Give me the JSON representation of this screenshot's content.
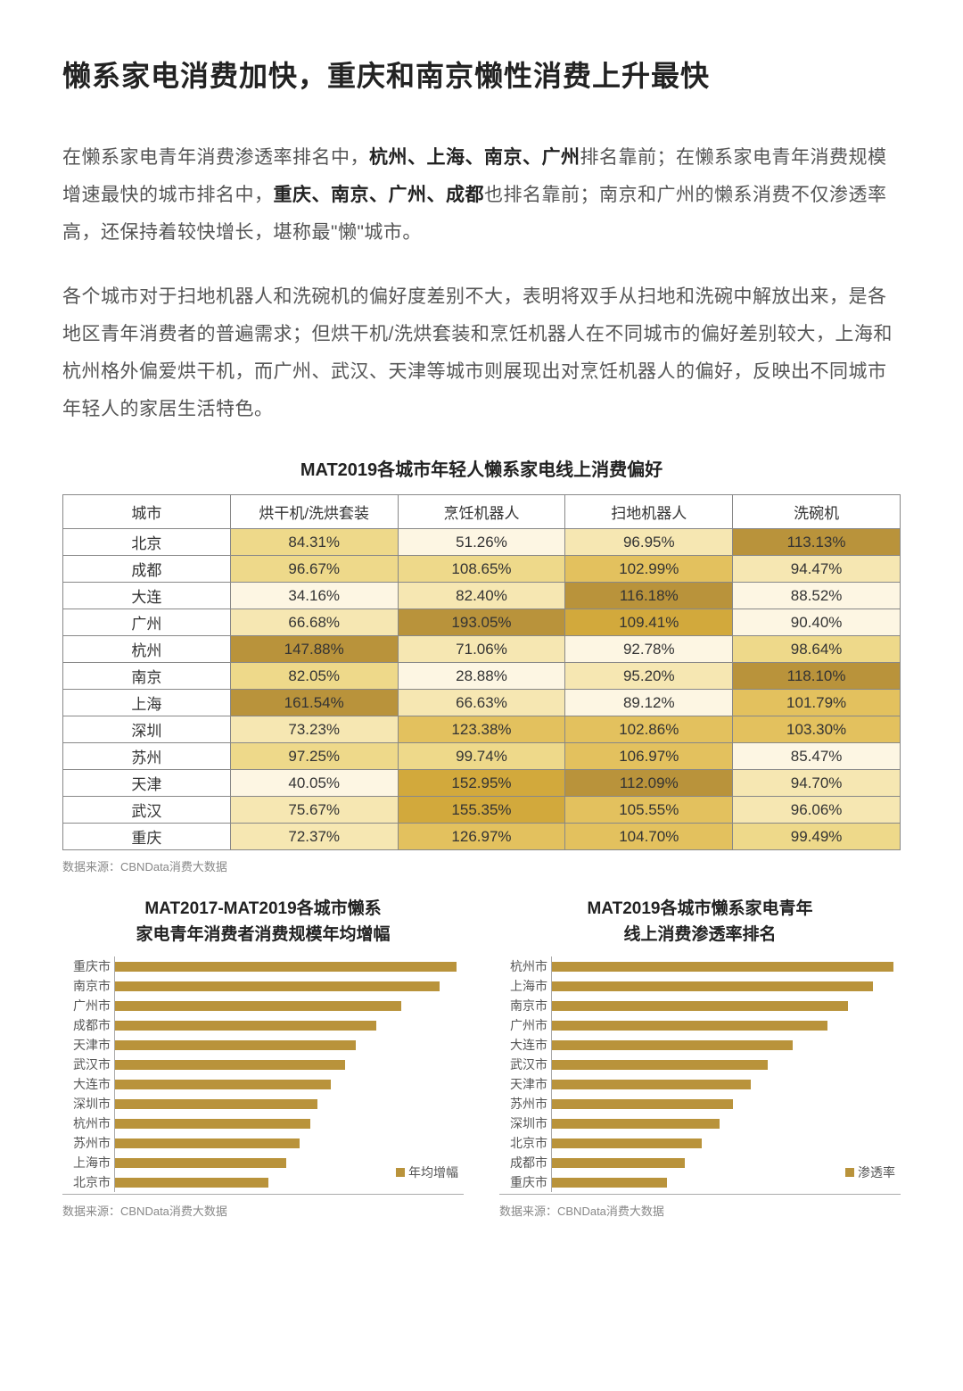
{
  "colors": {
    "bar": "#b9933b",
    "heat_scale": [
      "#fdf6e3",
      "#f6e7b2",
      "#eed98a",
      "#e3c15e",
      "#d2a93c",
      "#b9933b"
    ]
  },
  "title": "懒系家电消费加快，重庆和南京懒性消费上升最快",
  "para1_parts": [
    {
      "t": "在懒系家电青年消费渗透率排名中，",
      "b": false
    },
    {
      "t": "杭州、上海、南京、广州",
      "b": true
    },
    {
      "t": "排名靠前；在懒系家电青年消费规模增速最快的城市排名中，",
      "b": false
    },
    {
      "t": "重庆、南京、广州、成都",
      "b": true
    },
    {
      "t": "也排名靠前；南京和广州的懒系消费不仅渗透率高，还保持着较快增长，堪称最\"懒\"城市。",
      "b": false
    }
  ],
  "para2": "各个城市对于扫地机器人和洗碗机的偏好度差别不大，表明将双手从扫地和洗碗中解放出来，是各地区青年消费者的普遍需求；但烘干机/洗烘套装和烹饪机器人在不同城市的偏好差别较大，上海和杭州格外偏爱烘干机，而广州、武汉、天津等城市则展现出对烹饪机器人的偏好，反映出不同城市年轻人的家居生活特色。",
  "table": {
    "title": "MAT2019各城市年轻人懒系家电线上消费偏好",
    "columns": [
      "城市",
      "烘干机/洗烘套装",
      "烹饪机器人",
      "扫地机器人",
      "洗碗机"
    ],
    "rows": [
      {
        "city": "北京",
        "v": [
          84.31,
          51.26,
          96.95,
          113.13
        ]
      },
      {
        "city": "成都",
        "v": [
          96.67,
          108.65,
          102.99,
          94.47
        ]
      },
      {
        "city": "大连",
        "v": [
          34.16,
          82.4,
          116.18,
          88.52
        ]
      },
      {
        "city": "广州",
        "v": [
          66.68,
          193.05,
          109.41,
          90.4
        ]
      },
      {
        "city": "杭州",
        "v": [
          147.88,
          71.06,
          92.78,
          98.64
        ]
      },
      {
        "city": "南京",
        "v": [
          82.05,
          28.88,
          95.2,
          118.1
        ]
      },
      {
        "city": "上海",
        "v": [
          161.54,
          66.63,
          89.12,
          101.79
        ]
      },
      {
        "city": "深圳",
        "v": [
          73.23,
          123.38,
          102.86,
          103.3
        ]
      },
      {
        "city": "苏州",
        "v": [
          97.25,
          99.74,
          106.97,
          85.47
        ]
      },
      {
        "city": "天津",
        "v": [
          40.05,
          152.95,
          112.09,
          94.7
        ]
      },
      {
        "city": "武汉",
        "v": [
          75.67,
          155.35,
          105.55,
          96.06
        ]
      },
      {
        "city": "重庆",
        "v": [
          72.37,
          126.97,
          104.7,
          99.49
        ]
      }
    ],
    "col_ranges": [
      {
        "min": 34.16,
        "max": 161.54
      },
      {
        "min": 28.88,
        "max": 193.05
      },
      {
        "min": 89.12,
        "max": 116.18
      },
      {
        "min": 85.47,
        "max": 118.1
      }
    ],
    "source": "数据来源：CBNData消费大数据"
  },
  "chart_left": {
    "title_l1": "MAT2017-MAT2019各城市懒系",
    "title_l2": "家电青年消费者消费规模年均增幅",
    "legend": "年均增幅",
    "max": 100,
    "items": [
      {
        "label": "重庆市",
        "v": 98
      },
      {
        "label": "南京市",
        "v": 93
      },
      {
        "label": "广州市",
        "v": 82
      },
      {
        "label": "成都市",
        "v": 75
      },
      {
        "label": "天津市",
        "v": 69
      },
      {
        "label": "武汉市",
        "v": 66
      },
      {
        "label": "大连市",
        "v": 62
      },
      {
        "label": "深圳市",
        "v": 58
      },
      {
        "label": "杭州市",
        "v": 56
      },
      {
        "label": "苏州市",
        "v": 53
      },
      {
        "label": "上海市",
        "v": 49
      },
      {
        "label": "北京市",
        "v": 44
      }
    ],
    "source": "数据来源：CBNData消费大数据"
  },
  "chart_right": {
    "title_l1": "MAT2019各城市懒系家电青年",
    "title_l2": "线上消费渗透率排名",
    "legend": "渗透率",
    "max": 100,
    "items": [
      {
        "label": "杭州市",
        "v": 98
      },
      {
        "label": "上海市",
        "v": 92
      },
      {
        "label": "南京市",
        "v": 85
      },
      {
        "label": "广州市",
        "v": 79
      },
      {
        "label": "大连市",
        "v": 69
      },
      {
        "label": "武汉市",
        "v": 62
      },
      {
        "label": "天津市",
        "v": 57
      },
      {
        "label": "苏州市",
        "v": 52
      },
      {
        "label": "深圳市",
        "v": 48
      },
      {
        "label": "北京市",
        "v": 43
      },
      {
        "label": "成都市",
        "v": 38
      },
      {
        "label": "重庆市",
        "v": 33
      }
    ],
    "source": "数据来源：CBNData消费大数据"
  }
}
